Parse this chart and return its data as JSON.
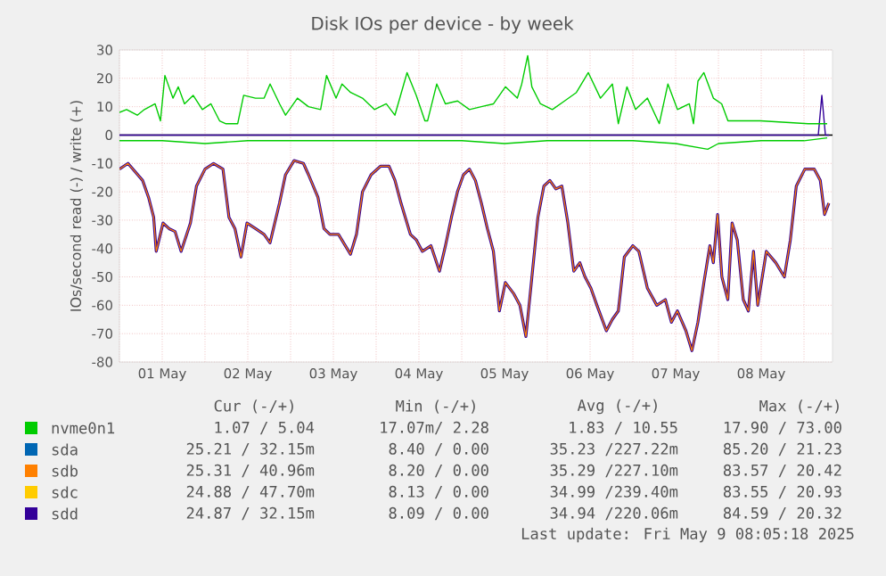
{
  "chart_data": {
    "type": "line",
    "title": "Disk IOs per device - by week",
    "ylabel": "IOs/second read (-) / write (+)",
    "xlim": [
      "2025-05-01T00:00",
      "2025-05-09T08:00"
    ],
    "ylim": [
      -80,
      30
    ],
    "yticks": [
      -80,
      -70,
      -60,
      -50,
      -40,
      -30,
      -20,
      -10,
      0,
      10,
      20,
      30
    ],
    "xticks": [
      {
        "value": "2025-05-01T00:00",
        "label": null
      },
      {
        "value": "2025-05-01T12:00",
        "label": "01 May"
      },
      {
        "value": "2025-05-02T00:00",
        "label": null
      },
      {
        "value": "2025-05-02T12:00",
        "label": "02 May"
      },
      {
        "value": "2025-05-03T00:00",
        "label": null
      },
      {
        "value": "2025-05-03T12:00",
        "label": "03 May"
      },
      {
        "value": "2025-05-04T00:00",
        "label": null
      },
      {
        "value": "2025-05-04T12:00",
        "label": "04 May"
      },
      {
        "value": "2025-05-05T00:00",
        "label": null
      },
      {
        "value": "2025-05-05T12:00",
        "label": "05 May"
      },
      {
        "value": "2025-05-06T00:00",
        "label": null
      },
      {
        "value": "2025-05-06T12:00",
        "label": "06 May"
      },
      {
        "value": "2025-05-07T00:00",
        "label": null
      },
      {
        "value": "2025-05-07T12:00",
        "label": "07 May"
      },
      {
        "value": "2025-05-08T00:00",
        "label": null
      },
      {
        "value": "2025-05-08T12:00",
        "label": "08 May"
      },
      {
        "value": "2025-05-09T00:00",
        "label": null
      }
    ],
    "grid": true,
    "legend": "bottom",
    "marker": "none",
    "ref_lines": [
      {
        "axis": "y",
        "value": 0,
        "color": "#000000"
      }
    ],
    "series": [
      {
        "name": "nvme0n1",
        "color": "#00cc00",
        "x": [
          "2025-05-01T00:00",
          "2025-05-01T02:00",
          "2025-05-01T05:00",
          "2025-05-01T07:00",
          "2025-05-01T10:00",
          "2025-05-01T11:30",
          "2025-05-01T12:45",
          "2025-05-01T15:00",
          "2025-05-01T16:30",
          "2025-05-01T18:15",
          "2025-05-01T20:40",
          "2025-05-01T23:15",
          "2025-05-02T01:40",
          "2025-05-02T04:05",
          "2025-05-02T05:45",
          "2025-05-02T09:10",
          "2025-05-02T10:50",
          "2025-05-02T14:10",
          "2025-05-02T16:35",
          "2025-05-02T18:15",
          "2025-05-02T20:55",
          "2025-05-02T22:35",
          "2025-05-03T01:55",
          "2025-05-03T05:00",
          "2025-05-03T08:25",
          "2025-05-03T10:05",
          "2025-05-03T12:45",
          "2025-05-03T14:25",
          "2025-05-03T16:50",
          "2025-05-03T20:10",
          "2025-05-03T23:30",
          "2025-05-04T02:50",
          "2025-05-04T05:15",
          "2025-05-04T08:40",
          "2025-05-04T11:15",
          "2025-05-04T13:40",
          "2025-05-04T14:25",
          "2025-05-04T17:00",
          "2025-05-04T19:25",
          "2025-05-04T22:50",
          "2025-05-05T02:10",
          "2025-05-05T05:30",
          "2025-05-05T08:55",
          "2025-05-05T12:15",
          "2025-05-05T15:35",
          "2025-05-05T16:50",
          "2025-05-05T18:30",
          "2025-05-05T19:40",
          "2025-05-05T22:05",
          "2025-05-06T01:25",
          "2025-05-06T04:50",
          "2025-05-06T08:10",
          "2025-05-06T11:30",
          "2025-05-06T14:55",
          "2025-05-06T18:15",
          "2025-05-06T19:55",
          "2025-05-06T22:20",
          "2025-05-07T00:45",
          "2025-05-07T04:05",
          "2025-05-07T07:25",
          "2025-05-07T09:50",
          "2025-05-07T12:30",
          "2025-05-07T15:50",
          "2025-05-07T17:00",
          "2025-05-07T18:15",
          "2025-05-07T19:55",
          "2025-05-07T22:35",
          "2025-05-08T00:55",
          "2025-05-08T02:40",
          "2025-05-08T11:45",
          "2025-05-09T01:10",
          "2025-05-09T06:30"
        ],
        "values": [
          8,
          9,
          7,
          9,
          11,
          5,
          21,
          13,
          17,
          11,
          14,
          9,
          11,
          5,
          4,
          4,
          14,
          13,
          13,
          18,
          11,
          7,
          13,
          10,
          9,
          21,
          13,
          18,
          15,
          13,
          9,
          11,
          7,
          22,
          14,
          5,
          5,
          18,
          11,
          12,
          9,
          10,
          11,
          17,
          13,
          18,
          28,
          17,
          11,
          9,
          12,
          15,
          22,
          13,
          18,
          4,
          17,
          9,
          13,
          4,
          18,
          9,
          11,
          4,
          19,
          22,
          13,
          11,
          5,
          5,
          4,
          4
        ]
      },
      {
        "color": "#00cc00",
        "x": [
          "2025-05-01T00:00",
          "2025-05-01T12:00",
          "2025-05-02T00:00",
          "2025-05-02T12:00",
          "2025-05-03T00:00",
          "2025-05-03T12:00",
          "2025-05-04T00:00",
          "2025-05-04T12:00",
          "2025-05-05T00:00",
          "2025-05-05T12:00",
          "2025-05-06T00:00",
          "2025-05-06T12:00",
          "2025-05-07T00:00",
          "2025-05-07T12:00",
          "2025-05-07T21:00",
          "2025-05-08T00:00",
          "2025-05-08T12:00",
          "2025-05-09T00:00",
          "2025-05-09T06:30"
        ],
        "values": [
          -2,
          -2,
          -3,
          -2,
          -2,
          -2,
          -2,
          -2,
          -2,
          -3,
          -2,
          -2,
          -2,
          -3,
          -5,
          -3,
          -2,
          -2,
          -1
        ]
      },
      {
        "name": "sda",
        "color": "#0066b3",
        "values": [
          null,
          null,
          null,
          null,
          null,
          null,
          null,
          null,
          null,
          null,
          null,
          null,
          null,
          null,
          null,
          null,
          null,
          null,
          null,
          null,
          null,
          null,
          null,
          null,
          null,
          null,
          null,
          null,
          null,
          null,
          null,
          null,
          null,
          null,
          null,
          null,
          null,
          null,
          null,
          null,
          null,
          null,
          null,
          null,
          null,
          null,
          null,
          null,
          null,
          null,
          null,
          null,
          null,
          null,
          null,
          null,
          null,
          null,
          null,
          null,
          null,
          null,
          null,
          null,
          null,
          null,
          null,
          null,
          null,
          null,
          null,
          null,
          null,
          null,
          null,
          null,
          null,
          null,
          null,
          null,
          null,
          null,
          null,
          null,
          null,
          null,
          null,
          null,
          null,
          null,
          null,
          null,
          null,
          null,
          null,
          null,
          null,
          null,
          null,
          null,
          null,
          null,
          null,
          null,
          null,
          null
        ]
      },
      {
        "name": "sdb",
        "color": "#ff8000",
        "values": [
          -12,
          -10,
          -16,
          -22,
          -29,
          -41,
          -31,
          -33,
          -34,
          -41,
          -31,
          -18,
          -12,
          -10,
          -12,
          -29,
          -33,
          -43,
          -31,
          -33,
          -35,
          -38,
          -24,
          -14,
          -9,
          -10,
          -14,
          -22,
          -33,
          -35,
          -35,
          -42,
          -35,
          -20,
          -14,
          -11,
          -11,
          -16,
          -24,
          -35,
          -37,
          -41,
          -39,
          -48,
          -39,
          -29,
          -20,
          -14,
          -12,
          -16,
          -24,
          -33,
          -41,
          -62,
          -52,
          -56,
          -60,
          -71,
          -50,
          -29,
          -18,
          -16,
          -19,
          -18,
          -31,
          -48,
          -45,
          -50,
          -54,
          -60,
          -69,
          -65,
          -62,
          -43,
          -39,
          -41,
          -54,
          -60,
          -58,
          -66,
          -62,
          -69,
          -76,
          -66,
          -52,
          -39,
          -45,
          -28,
          -50,
          -58,
          -31,
          -37,
          -58,
          -62,
          -41,
          -60,
          -41,
          -45,
          -50,
          -37,
          -18,
          -12,
          -12,
          -16,
          -28,
          -24
        ]
      },
      {
        "name": "sdc",
        "color": "#ffcc00",
        "values": [
          null,
          null,
          null,
          null,
          null,
          null,
          null,
          null,
          null,
          null,
          null,
          null,
          null,
          null,
          null,
          null,
          null,
          null,
          null,
          null,
          null,
          null,
          null,
          null,
          null,
          null,
          null,
          null,
          null,
          null,
          null,
          null,
          null,
          null,
          null,
          null,
          null,
          null,
          null,
          null,
          null,
          null,
          null,
          null,
          null,
          null,
          null,
          null,
          null,
          null,
          null,
          null,
          null,
          null,
          null,
          null,
          null,
          null,
          null,
          null,
          null,
          null,
          null,
          null,
          null,
          null,
          null,
          null,
          null,
          null,
          null,
          null,
          null,
          null,
          null,
          null,
          null,
          null,
          null,
          null,
          null,
          null,
          null,
          null,
          null,
          null,
          null,
          null,
          null,
          null,
          null,
          null,
          null,
          null,
          null,
          null,
          null,
          null,
          null,
          null,
          null,
          null,
          null,
          null,
          null,
          null
        ]
      },
      {
        "name": "sdd",
        "color": "#330099",
        "values": [
          -12,
          -10,
          -16,
          -22,
          -29,
          -41,
          -31,
          -33,
          -34,
          -41,
          -31,
          -18,
          -12,
          -10,
          -12,
          -29,
          -33,
          -43,
          -31,
          -33,
          -35,
          -38,
          -24,
          -14,
          -9,
          -10,
          -14,
          -22,
          -33,
          -35,
          -35,
          -42,
          -35,
          -20,
          -14,
          -11,
          -11,
          -16,
          -24,
          -35,
          -37,
          -41,
          -39,
          -48,
          -39,
          -29,
          -20,
          -14,
          -12,
          -16,
          -24,
          -33,
          -41,
          -62,
          -52,
          -56,
          -60,
          -71,
          -50,
          -29,
          -18,
          -16,
          -19,
          -18,
          -31,
          -48,
          -45,
          -50,
          -54,
          -60,
          -69,
          -65,
          -62,
          -43,
          -39,
          -41,
          -54,
          -60,
          -58,
          -66,
          -62,
          -69,
          -76,
          -66,
          -52,
          -39,
          -45,
          -28,
          -50,
          -58,
          -31,
          -37,
          -58,
          -62,
          -41,
          -60,
          -41,
          -45,
          -50,
          -37,
          -18,
          -12,
          -12,
          -16,
          -28,
          -24
        ]
      },
      {
        "color": "#330099",
        "x": [
          "2025-05-01T00:00",
          "2025-05-09T04:00",
          "2025-05-09T05:00",
          "2025-05-09T06:00",
          "2025-05-09T07:00"
        ],
        "values": [
          0,
          0,
          14,
          0,
          0
        ]
      }
    ],
    "x": [
      "2025-05-01T00:00",
      "2025-05-01T02:24",
      "2025-05-01T06:30",
      "2025-05-01T08:10",
      "2025-05-01T09:36",
      "2025-05-01T10:19",
      "2025-05-01T12:14",
      "2025-05-01T13:55",
      "2025-05-01T15:36",
      "2025-05-01T17:17",
      "2025-05-01T19:55",
      "2025-05-01T21:36",
      "2025-05-02T00:00",
      "2025-05-02T02:24",
      "2025-05-02T05:02",
      "2025-05-02T06:43",
      "2025-05-02T08:24",
      "2025-05-02T10:05",
      "2025-05-02T11:46",
      "2025-05-02T14:10",
      "2025-05-02T16:34",
      "2025-05-02T18:14",
      "2025-05-02T20:53",
      "2025-05-02T22:34",
      "2025-05-03T00:58",
      "2025-05-03T03:36",
      "2025-05-03T05:02",
      "2025-05-03T07:41",
      "2025-05-03T09:22",
      "2025-05-03T11:02",
      "2025-05-03T13:26",
      "2025-05-03T16:48",
      "2025-05-03T18:29",
      "2025-05-03T20:10",
      "2025-05-03T22:34",
      "2025-05-04T01:12",
      "2025-05-04T03:36",
      "2025-05-04T05:17",
      "2025-05-04T06:58",
      "2025-05-04T09:36",
      "2025-05-04T11:17",
      "2025-05-04T12:58",
      "2025-05-04T15:22",
      "2025-05-04T17:46",
      "2025-05-04T19:26",
      "2025-05-04T21:07",
      "2025-05-04T22:48",
      "2025-05-05T00:29",
      "2025-05-05T02:10",
      "2025-05-05T03:50",
      "2025-05-05T05:31",
      "2025-05-05T07:12",
      "2025-05-05T08:53",
      "2025-05-05T10:34",
      "2025-05-05T12:14",
      "2025-05-05T14:38",
      "2025-05-05T16:19",
      "2025-05-05T18:00",
      "2025-05-05T19:41",
      "2025-05-05T21:22",
      "2025-05-05T23:02",
      "2025-05-06T00:43",
      "2025-05-06T02:24",
      "2025-05-06T04:05",
      "2025-05-06T05:46",
      "2025-05-06T07:26",
      "2025-05-06T09:07",
      "2025-05-06T10:34",
      "2025-05-06T12:14",
      "2025-05-06T13:55",
      "2025-05-06T16:34",
      "2025-05-06T18:14",
      "2025-05-06T19:55",
      "2025-05-06T21:36",
      "2025-05-07T00:00",
      "2025-05-07T01:41",
      "2025-05-07T04:05",
      "2025-05-07T06:43",
      "2025-05-07T09:07",
      "2025-05-07T10:48",
      "2025-05-07T12:29",
      "2025-05-07T14:53",
      "2025-05-07T16:34",
      "2025-05-07T18:14",
      "2025-05-07T19:55",
      "2025-05-07T21:36",
      "2025-05-07T22:34",
      "2025-05-07T23:46",
      "2025-05-08T00:58",
      "2025-05-08T02:38",
      "2025-05-08T03:50",
      "2025-05-08T05:17",
      "2025-05-08T06:58",
      "2025-05-08T08:24",
      "2025-05-08T09:50",
      "2025-05-08T11:02",
      "2025-05-08T13:26",
      "2025-05-08T16:05",
      "2025-05-08T18:29",
      "2025-05-08T20:10",
      "2025-05-08T21:50",
      "2025-05-09T00:14",
      "2025-05-09T02:53",
      "2025-05-09T04:34",
      "2025-05-09T05:46",
      "2025-05-09T06:58"
    ],
    "annotations": [
      "Cur (-/+)",
      "Min (-/+)",
      "Avg (-/+)",
      "Max (-/+)",
      "1.07 /  5.04",
      "17.07m/  2.28",
      "1.83 / 10.55",
      "17.90 / 73.00",
      "25.21 / 32.15m",
      "8.40 /  0.00",
      "35.23 /227.22m",
      "85.20 / 21.23",
      "25.31 / 40.96m",
      "8.20 /  0.00",
      "35.29 /227.10m",
      "83.57 / 20.42",
      "24.88 / 47.70m",
      "8.13 /  0.00",
      "34.99 /239.40m",
      "83.55 / 20.93",
      "24.87 / 32.15m",
      "8.09 /  0.00",
      "34.94 /220.06m",
      "84.59 / 20.32",
      "Last update: Fri May  9 08:05:18 2025"
    ]
  }
}
